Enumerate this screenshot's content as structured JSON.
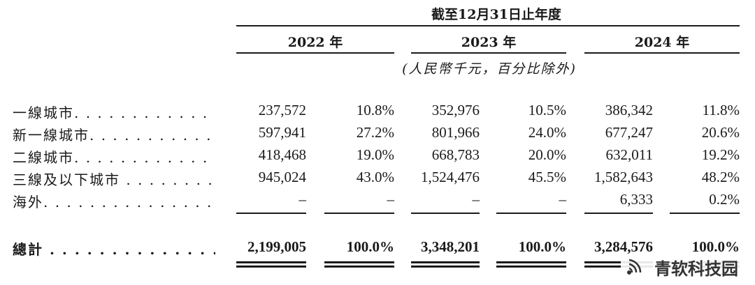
{
  "header": {
    "period": "截至12月31日止年度",
    "years": [
      "2022 年",
      "2023 年",
      "2024 年"
    ],
    "unit_note": "(人民幣千元，百分比除外)"
  },
  "rows": [
    {
      "label": "一線城市. . . . . . . . . . . . . . . . .",
      "values": [
        "237,572",
        "10.8%",
        "352,976",
        "10.5%",
        "386,342",
        "11.8%"
      ]
    },
    {
      "label": "新一線城市. . . . . . . . . . . . . . .",
      "values": [
        "597,941",
        "27.2%",
        "801,966",
        "24.0%",
        "677,247",
        "20.6%"
      ]
    },
    {
      "label": "二線城市. . . . . . . . . . . . . . . . .",
      "values": [
        "418,468",
        "19.0%",
        "668,783",
        "20.0%",
        "632,011",
        "19.2%"
      ]
    },
    {
      "label": "三線及以下城市 . . . . . . . . . .",
      "values": [
        "945,024",
        "43.0%",
        "1,524,476",
        "45.5%",
        "1,582,643",
        "48.2%"
      ]
    },
    {
      "label": "海外. . . . . . . . . . . . . . . . . . . . . .",
      "values": [
        "–",
        "–",
        "–",
        "–",
        "6,333",
        "0.2%"
      ]
    }
  ],
  "total": {
    "label": "總計 . . . . . . . . . . . . . . . . . . . .",
    "values": [
      "2,199,005",
      "100.0%",
      "3,348,201",
      "100.0%",
      "3,284,576",
      "100.0%"
    ]
  },
  "watermark": {
    "text": "青软科技园",
    "icon": "sound-wave-icon"
  }
}
